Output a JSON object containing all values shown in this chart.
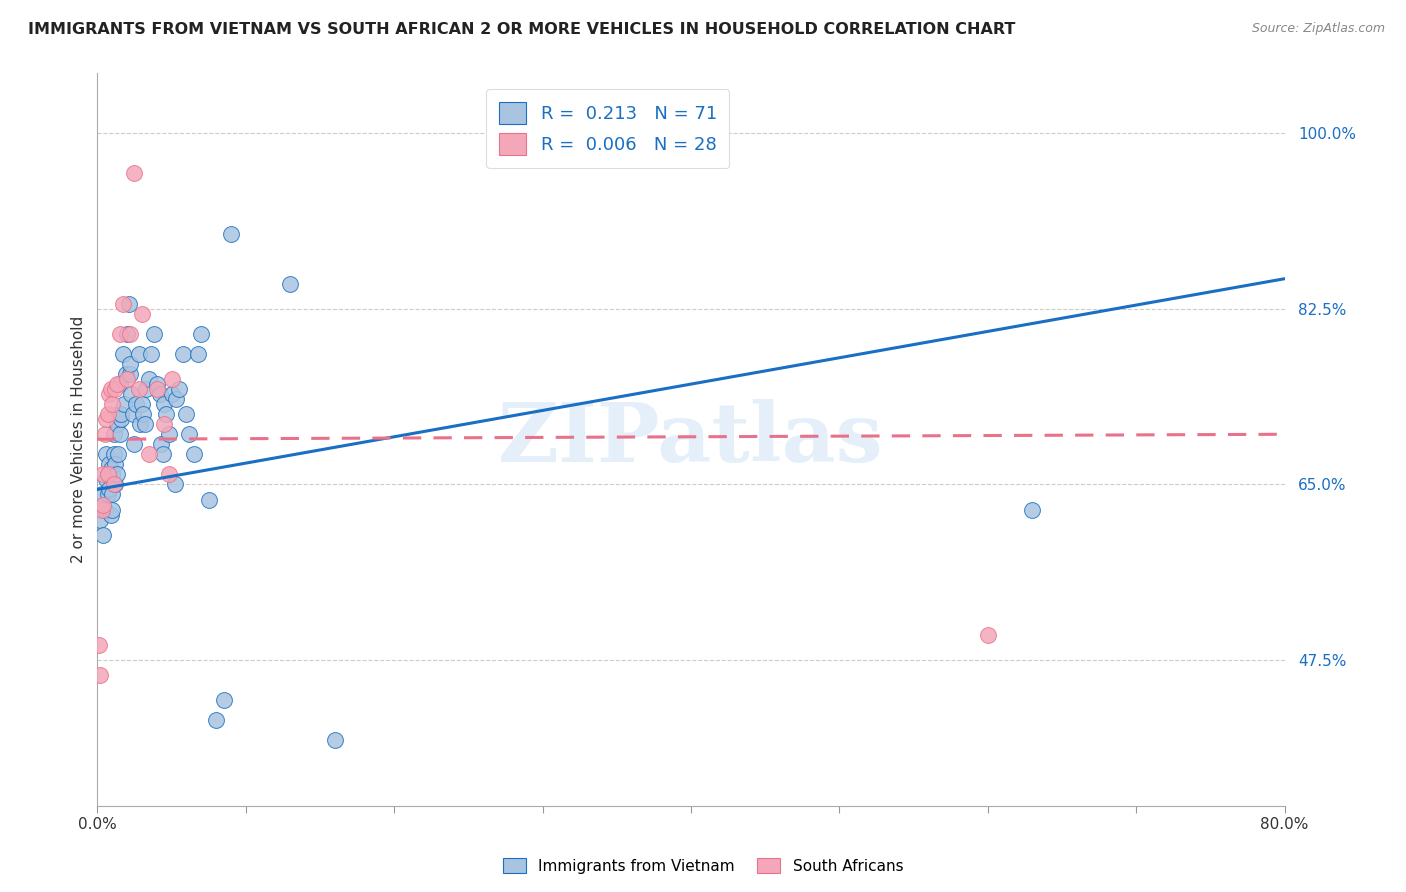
{
  "title": "IMMIGRANTS FROM VIETNAM VS SOUTH AFRICAN 2 OR MORE VEHICLES IN HOUSEHOLD CORRELATION CHART",
  "source": "Source: ZipAtlas.com",
  "ylabel": "2 or more Vehicles in Household",
  "ytick_vals": [
    0.475,
    0.65,
    0.825,
    1.0
  ],
  "ytick_labels": [
    "47.5%",
    "65.0%",
    "82.5%",
    "100.0%"
  ],
  "xtick_vals": [
    0.0,
    0.1,
    0.2,
    0.3,
    0.4,
    0.5,
    0.6,
    0.7,
    0.8
  ],
  "xtick_labels": [
    "0.0%",
    "",
    "",
    "",
    "",
    "",
    "",
    "",
    "80.0%"
  ],
  "r_vietnam": 0.213,
  "n_vietnam": 71,
  "r_southafrica": 0.006,
  "n_southafrica": 28,
  "legend_label_vietnam": "Immigrants from Vietnam",
  "legend_label_southafrica": "South Africans",
  "color_vietnam": "#a8c4e0",
  "color_southafrica": "#f4a7b9",
  "trendline_vietnam_color": "#1a6fc4",
  "trendline_southafrica_color": "#e8728a",
  "watermark": "ZIPatlas",
  "xmin": 0.0,
  "xmax": 0.8,
  "ymin": 0.33,
  "ymax": 1.06,
  "trendline_vietnam_x0": 0.0,
  "trendline_vietnam_y0": 0.645,
  "trendline_vietnam_x1": 0.8,
  "trendline_vietnam_y1": 0.855,
  "trendline_sa_x0": 0.0,
  "trendline_sa_y0": 0.695,
  "trendline_sa_x1": 0.8,
  "trendline_sa_y1": 0.7,
  "vietnam_x": [
    0.002,
    0.003,
    0.004,
    0.005,
    0.006,
    0.006,
    0.007,
    0.007,
    0.008,
    0.008,
    0.009,
    0.009,
    0.01,
    0.01,
    0.01,
    0.011,
    0.011,
    0.012,
    0.012,
    0.013,
    0.013,
    0.014,
    0.014,
    0.015,
    0.015,
    0.016,
    0.016,
    0.017,
    0.018,
    0.019,
    0.02,
    0.021,
    0.022,
    0.022,
    0.023,
    0.024,
    0.025,
    0.026,
    0.028,
    0.029,
    0.03,
    0.031,
    0.032,
    0.033,
    0.035,
    0.036,
    0.038,
    0.04,
    0.042,
    0.043,
    0.044,
    0.045,
    0.046,
    0.048,
    0.05,
    0.052,
    0.053,
    0.055,
    0.058,
    0.06,
    0.062,
    0.065,
    0.068,
    0.07,
    0.075,
    0.08,
    0.085,
    0.09,
    0.13,
    0.16,
    0.63
  ],
  "vietnam_y": [
    0.615,
    0.64,
    0.6,
    0.625,
    0.655,
    0.68,
    0.66,
    0.64,
    0.67,
    0.645,
    0.665,
    0.62,
    0.66,
    0.64,
    0.625,
    0.68,
    0.7,
    0.67,
    0.65,
    0.71,
    0.66,
    0.72,
    0.68,
    0.75,
    0.7,
    0.715,
    0.72,
    0.78,
    0.73,
    0.76,
    0.8,
    0.83,
    0.76,
    0.77,
    0.74,
    0.72,
    0.69,
    0.73,
    0.78,
    0.71,
    0.73,
    0.72,
    0.71,
    0.745,
    0.755,
    0.78,
    0.8,
    0.75,
    0.74,
    0.69,
    0.68,
    0.73,
    0.72,
    0.7,
    0.74,
    0.65,
    0.735,
    0.745,
    0.78,
    0.72,
    0.7,
    0.68,
    0.78,
    0.8,
    0.635,
    0.415,
    0.435,
    0.9,
    0.85,
    0.395,
    0.625
  ],
  "southafrica_x": [
    0.001,
    0.002,
    0.003,
    0.004,
    0.004,
    0.005,
    0.006,
    0.007,
    0.007,
    0.008,
    0.009,
    0.01,
    0.011,
    0.012,
    0.013,
    0.015,
    0.017,
    0.02,
    0.022,
    0.025,
    0.028,
    0.03,
    0.035,
    0.04,
    0.045,
    0.048,
    0.05,
    0.6
  ],
  "southafrica_y": [
    0.49,
    0.46,
    0.625,
    0.66,
    0.63,
    0.7,
    0.715,
    0.66,
    0.72,
    0.74,
    0.745,
    0.73,
    0.65,
    0.745,
    0.75,
    0.8,
    0.83,
    0.755,
    0.8,
    0.96,
    0.745,
    0.82,
    0.68,
    0.745,
    0.71,
    0.66,
    0.755,
    0.5
  ]
}
